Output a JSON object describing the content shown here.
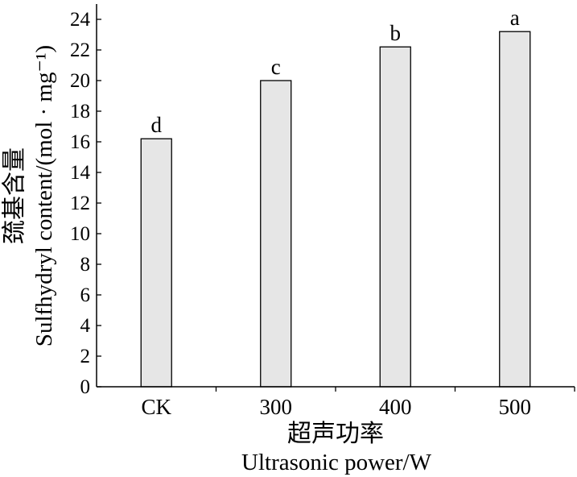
{
  "chart_data": {
    "type": "bar",
    "categories": [
      "CK",
      "300",
      "400",
      "500"
    ],
    "values": [
      16.2,
      20.0,
      22.2,
      23.2
    ],
    "significance_letters": [
      "d",
      "c",
      "b",
      "a"
    ],
    "xlabel": [
      "超声功率",
      "Ultrasonic power/W"
    ],
    "ylabel": [
      "巯基含量",
      "Sulfhydryl content/(mol · mg⁻¹)"
    ],
    "ylim": [
      0,
      25
    ],
    "yticks": [
      0,
      2,
      4,
      6,
      8,
      10,
      12,
      14,
      16,
      18,
      20,
      22,
      24
    ],
    "grid": false,
    "legend": false
  },
  "colors": {
    "bar_fill": "#e6e6e6",
    "bar_edge": "#000000",
    "axis": "#000000"
  }
}
